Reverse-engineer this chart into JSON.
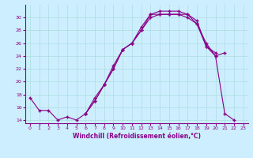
{
  "xlabel": "Windchill (Refroidissement éolien,°C)",
  "bg_color": "#cceeff",
  "line_color": "#880088",
  "grid_color": "#aadddd",
  "xlim": [
    -0.5,
    23.5
  ],
  "ylim": [
    13.5,
    32.0
  ],
  "xticks": [
    0,
    1,
    2,
    3,
    4,
    5,
    6,
    7,
    8,
    9,
    10,
    11,
    12,
    13,
    14,
    15,
    16,
    17,
    18,
    19,
    20,
    21,
    22,
    23
  ],
  "yticks": [
    14,
    16,
    18,
    20,
    22,
    24,
    26,
    28,
    30
  ],
  "line1_x": [
    0,
    1,
    2,
    3,
    4,
    5,
    6,
    7,
    8,
    9,
    10,
    11,
    12,
    13,
    14,
    15,
    16,
    17,
    18,
    19,
    20,
    21,
    22
  ],
  "line1_y": [
    17.5,
    15.5,
    15.5,
    14.0,
    14.5,
    14.0,
    15.0,
    17.0,
    19.5,
    22.5,
    25.0,
    26.0,
    28.5,
    30.5,
    31.0,
    31.0,
    31.0,
    30.5,
    29.0,
    25.5,
    24.0,
    15.0,
    14.0
  ],
  "line2_x": [
    6,
    7,
    8,
    9,
    10,
    11,
    12,
    13,
    14,
    15,
    16,
    17,
    18,
    19,
    20,
    21
  ],
  "line2_y": [
    15.0,
    17.5,
    19.5,
    22.0,
    25.0,
    26.0,
    28.0,
    30.0,
    30.5,
    30.5,
    30.5,
    30.0,
    29.0,
    26.0,
    24.0,
    24.5
  ],
  "line3_x": [
    6,
    7,
    8,
    9,
    10,
    11,
    12,
    13,
    14,
    15,
    16,
    17,
    18,
    19,
    20
  ],
  "line3_y": [
    15.0,
    17.0,
    19.5,
    22.0,
    25.0,
    26.0,
    28.0,
    30.5,
    30.5,
    30.5,
    30.5,
    30.5,
    29.5,
    25.5,
    24.5
  ]
}
